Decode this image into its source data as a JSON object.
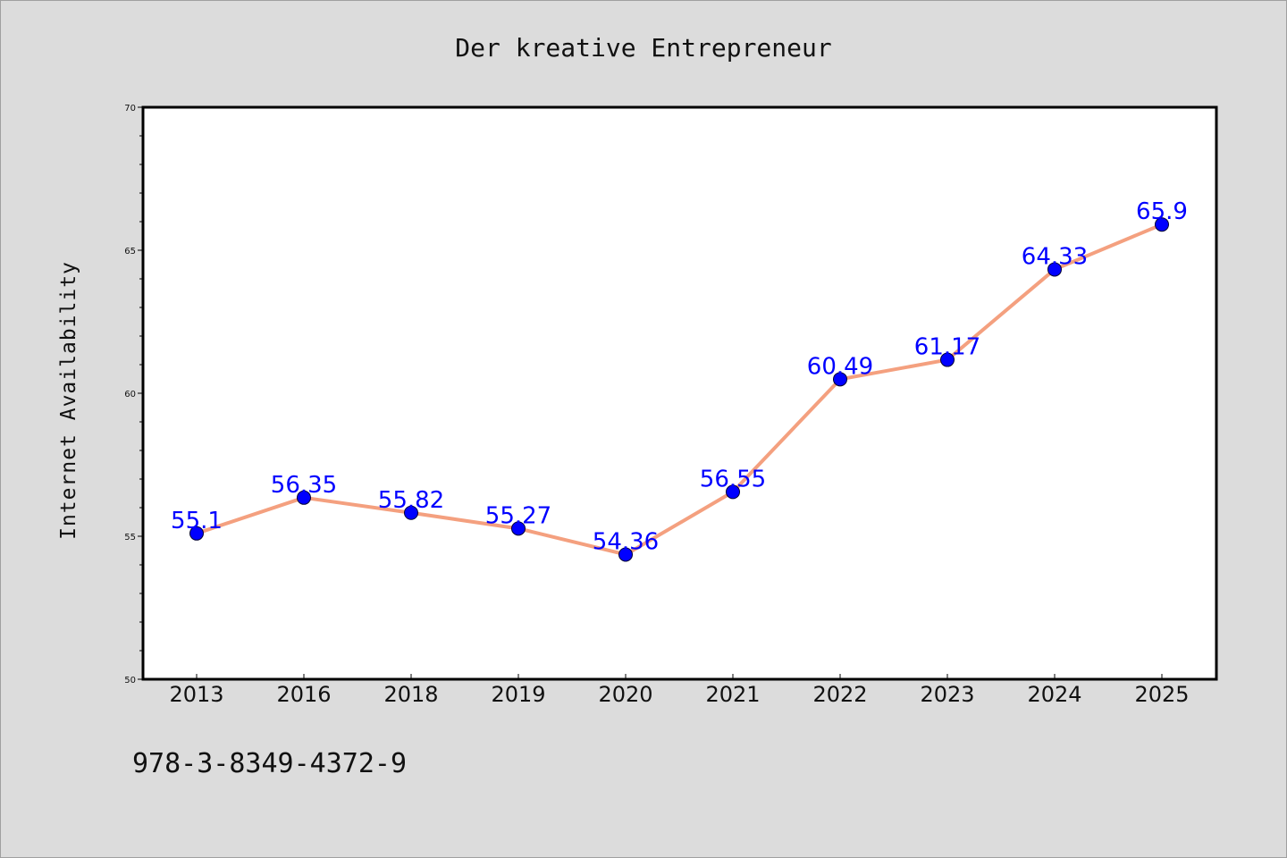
{
  "chart_data": {
    "type": "line",
    "title": "Der kreative Entrepreneur",
    "xlabel": "",
    "ylabel": "Internet Availability",
    "categories": [
      "2013",
      "2016",
      "2018",
      "2019",
      "2020",
      "2021",
      "2022",
      "2023",
      "2024",
      "2025"
    ],
    "values": [
      55.1,
      56.35,
      55.82,
      55.27,
      54.36,
      56.55,
      60.49,
      61.17,
      64.33,
      65.9
    ],
    "data_labels": [
      "55.1",
      "56.35",
      "55.82",
      "55.27",
      "54.36",
      "56.55",
      "60.49",
      "61.17",
      "64.33",
      "65.9"
    ],
    "ylim": [
      50,
      70
    ],
    "yticks": [
      "50",
      "55",
      "60",
      "65",
      "70"
    ],
    "grid": false,
    "line_color": "#f4a07f",
    "marker_color": "#0000ff",
    "label_color": "#0000ff"
  },
  "footer": {
    "isbn": "978-3-8349-4372-9"
  }
}
